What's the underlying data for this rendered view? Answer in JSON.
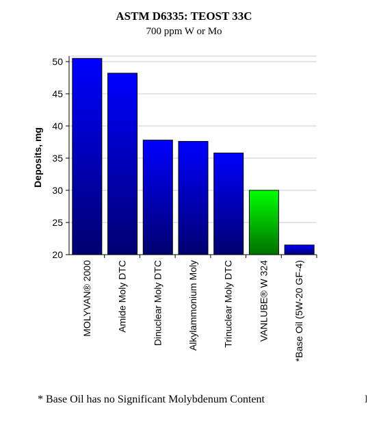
{
  "chart_data": {
    "type": "bar",
    "title": "ASTM D6335: TEOST 33C",
    "subtitle": "700 ppm W or Mo",
    "ylabel": "Deposits, mg",
    "xlabel": "",
    "ylim": [
      20,
      52
    ],
    "yticks": [
      20,
      25,
      30,
      35,
      40,
      45,
      50
    ],
    "grid": true,
    "categories": [
      "MOLYVAN® 2000",
      "Amide Moly DTC",
      "Dinuclear Moly DTC",
      "Alkylammonium Moly",
      "Trinuclear Moly DTC",
      "VANLUBE® W 324",
      "*Base Oil (5W-20 GF-4)"
    ],
    "values": [
      50.5,
      48.2,
      37.8,
      37.6,
      35.8,
      30.0,
      21.5
    ],
    "bar_colors": [
      "#0000ff",
      "#0000ff",
      "#0000ff",
      "#0000ff",
      "#0000ff",
      "#00ff00",
      "#0000ff"
    ],
    "bar_gradient_bottom": {
      "#0000ff": "#000070",
      "#00ff00": "#007000"
    }
  },
  "footnote": "* Base Oil has no Significant Molybdenum Content"
}
